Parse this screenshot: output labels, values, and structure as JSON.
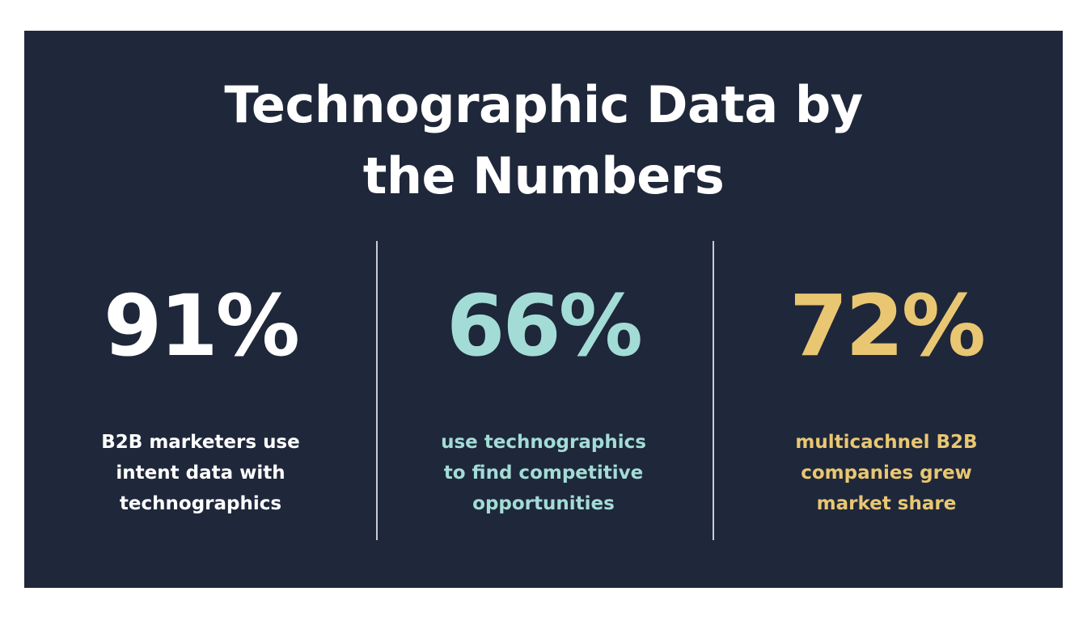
{
  "header": {
    "title_lines": [
      "Technographic Data by",
      "the Numbers"
    ]
  },
  "stats": [
    {
      "value": "91%",
      "color": "#ffffff",
      "description_lines": [
        "B2B marketers use",
        "intent data with",
        "technographics"
      ]
    },
    {
      "value": "66%",
      "color": "#a3dcd6",
      "description_lines": [
        "use technographics",
        "to find competitive",
        "opportunities"
      ]
    },
    {
      "value": "72%",
      "color": "#e9c772",
      "description_lines": [
        "multicachnel B2B",
        "companies grew",
        "market share"
      ]
    }
  ]
}
